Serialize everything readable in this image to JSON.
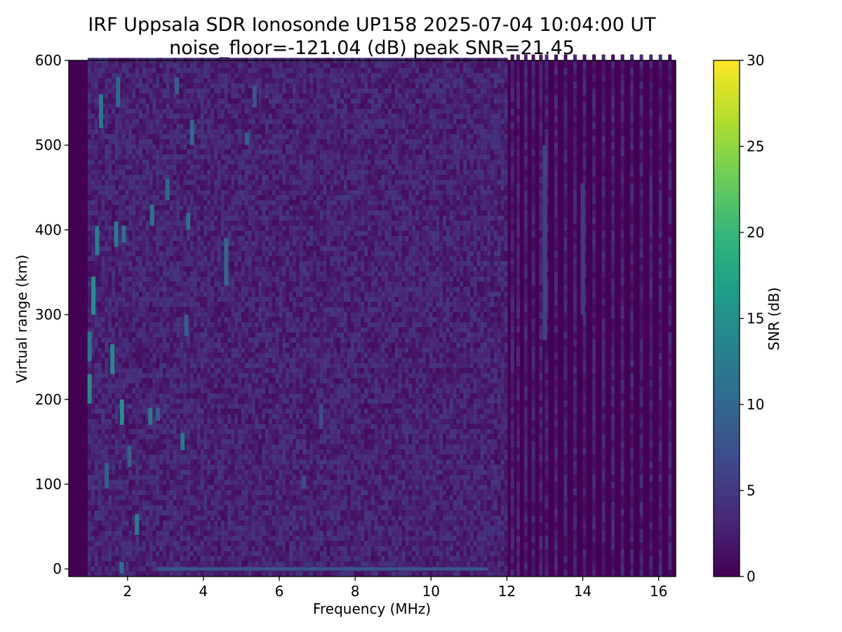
{
  "chart_data": {
    "type": "heatmap",
    "title": "IRF Uppsala SDR Ionosonde UP158 2025-07-04 10:04:00  UT",
    "subtitle": "noise_floor=-121.04 (dB) peak SNR=21.45",
    "xlabel": "Frequency (MHz)",
    "ylabel": "Virtual range (km)",
    "colorbar_label": "SNR (dB)",
    "colormap": "viridis",
    "colormap_stops": [
      "#440154",
      "#482878",
      "#3e4989",
      "#31688e",
      "#26828e",
      "#1f9e89",
      "#35b779",
      "#6ece58",
      "#b5de2b",
      "#fde725"
    ],
    "xlim": [
      0.45,
      16.45
    ],
    "ylim": [
      -9,
      600
    ],
    "clim": [
      0,
      30
    ],
    "x_ticks": [
      2,
      4,
      6,
      8,
      10,
      12,
      14,
      16
    ],
    "x_tick_labels": [
      "2",
      "4",
      "6",
      "8",
      "10",
      "12",
      "14",
      "16"
    ],
    "y_ticks": [
      0,
      100,
      200,
      300,
      400,
      500,
      600
    ],
    "y_tick_labels": [
      "0",
      "100",
      "200",
      "300",
      "400",
      "500",
      "600"
    ],
    "colorbar_ticks": [
      0,
      5,
      10,
      15,
      20,
      25,
      30
    ],
    "colorbar_tick_labels": [
      "0",
      "5",
      "10",
      "15",
      "20",
      "25",
      "30"
    ],
    "freq_range_mhz": [
      0.95,
      16.4
    ],
    "dense_noise_band_mhz": [
      0.95,
      12.0
    ],
    "sparse_channel_band_mhz": [
      12.0,
      16.4
    ],
    "noise_level_db": 3,
    "ground_echo": {
      "range_km": 0,
      "freq_start_mhz": 2.8,
      "freq_end_mhz": 11.5,
      "snr_db": 8
    },
    "bright_echoes": [
      {
        "freq_mhz": 1.0,
        "range_km": [
          195,
          230
        ],
        "snr_db": 14
      },
      {
        "freq_mhz": 1.0,
        "range_km": [
          245,
          280
        ],
        "snr_db": 12
      },
      {
        "freq_mhz": 1.1,
        "range_km": [
          300,
          345
        ],
        "snr_db": 15
      },
      {
        "freq_mhz": 1.2,
        "range_km": [
          370,
          405
        ],
        "snr_db": 13
      },
      {
        "freq_mhz": 1.3,
        "range_km": [
          520,
          560
        ],
        "snr_db": 12
      },
      {
        "freq_mhz": 1.45,
        "range_km": [
          95,
          125
        ],
        "snr_db": 9
      },
      {
        "freq_mhz": 1.6,
        "range_km": [
          230,
          265
        ],
        "snr_db": 14
      },
      {
        "freq_mhz": 1.7,
        "range_km": [
          380,
          410
        ],
        "snr_db": 12
      },
      {
        "freq_mhz": 1.75,
        "range_km": [
          545,
          580
        ],
        "snr_db": 10
      },
      {
        "freq_mhz": 1.85,
        "range_km": [
          170,
          200
        ],
        "snr_db": 15
      },
      {
        "freq_mhz": 1.9,
        "range_km": [
          385,
          405
        ],
        "snr_db": 11
      },
      {
        "freq_mhz": 1.85,
        "range_km": [
          -5,
          8
        ],
        "snr_db": 11
      },
      {
        "freq_mhz": 2.05,
        "range_km": [
          120,
          145
        ],
        "snr_db": 9
      },
      {
        "freq_mhz": 2.25,
        "range_km": [
          40,
          65
        ],
        "snr_db": 12
      },
      {
        "freq_mhz": 2.6,
        "range_km": [
          170,
          190
        ],
        "snr_db": 12
      },
      {
        "freq_mhz": 2.65,
        "range_km": [
          405,
          430
        ],
        "snr_db": 11
      },
      {
        "freq_mhz": 2.8,
        "range_km": [
          175,
          190
        ],
        "snr_db": 9
      },
      {
        "freq_mhz": 3.05,
        "range_km": [
          435,
          460
        ],
        "snr_db": 10
      },
      {
        "freq_mhz": 3.3,
        "range_km": [
          560,
          580
        ],
        "snr_db": 9
      },
      {
        "freq_mhz": 3.45,
        "range_km": [
          140,
          160
        ],
        "snr_db": 12
      },
      {
        "freq_mhz": 3.55,
        "range_km": [
          275,
          300
        ],
        "snr_db": 9
      },
      {
        "freq_mhz": 3.6,
        "range_km": [
          400,
          420
        ],
        "snr_db": 11
      },
      {
        "freq_mhz": 3.7,
        "range_km": [
          500,
          530
        ],
        "snr_db": 10
      },
      {
        "freq_mhz": 4.6,
        "range_km": [
          335,
          390
        ],
        "snr_db": 10
      },
      {
        "freq_mhz": 5.15,
        "range_km": [
          500,
          515
        ],
        "snr_db": 9
      },
      {
        "freq_mhz": 5.35,
        "range_km": [
          545,
          570
        ],
        "snr_db": 8
      },
      {
        "freq_mhz": 6.65,
        "range_km": [
          95,
          110
        ],
        "snr_db": 7
      },
      {
        "freq_mhz": 7.1,
        "range_km": [
          165,
          195
        ],
        "snr_db": 7
      },
      {
        "freq_mhz": 13.0,
        "range_km": [
          270,
          500
        ],
        "snr_db": 6
      },
      {
        "freq_mhz": 14.0,
        "range_km": [
          300,
          455
        ],
        "snr_db": 5
      }
    ]
  }
}
